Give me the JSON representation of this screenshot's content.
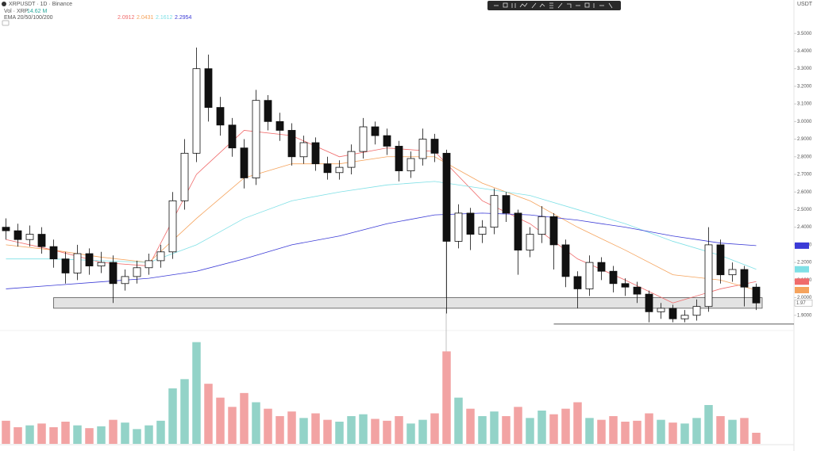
{
  "chart_data": {
    "type": "candlestick",
    "symbol": "XRPUSDT · 1D · Binance",
    "volume_label": "Vol · XRP",
    "volume_value": "14.62 M",
    "ema_label": "EMA 20/50/100/200",
    "currency": "USDT",
    "ylim": [
      1.8,
      3.6
    ],
    "yticks": [
      {
        "value": 1.9,
        "label": "1.9000"
      },
      {
        "value": 2.0,
        "label": "2.0000"
      },
      {
        "value": 2.1,
        "label": "2.1000"
      },
      {
        "value": 2.2,
        "label": "2.2000"
      },
      {
        "value": 2.3,
        "label": "2.3000"
      },
      {
        "value": 2.4,
        "label": "2.4000"
      },
      {
        "value": 2.5,
        "label": "2.5000"
      },
      {
        "value": 2.6,
        "label": "2.6000"
      },
      {
        "value": 2.7,
        "label": "2.7000"
      },
      {
        "value": 2.8,
        "label": "2.8000"
      },
      {
        "value": 2.9,
        "label": "2.9000"
      },
      {
        "value": 3.0,
        "label": "3.0000"
      },
      {
        "value": 3.1,
        "label": "3.1000"
      },
      {
        "value": 3.2,
        "label": "3.2000"
      },
      {
        "value": 3.3,
        "label": "3.3000"
      },
      {
        "value": 3.4,
        "label": "3.4000"
      },
      {
        "value": 3.5,
        "label": "3.5000"
      }
    ],
    "up_color": "#ffffff",
    "down_color": "#111111",
    "open": [
      2.4,
      2.38,
      2.33,
      2.36,
      2.29,
      2.22,
      2.14,
      2.25,
      2.18,
      2.2,
      2.08,
      2.12,
      2.17,
      2.21,
      2.26,
      2.55,
      2.82,
      3.3,
      3.08,
      2.98,
      2.85,
      2.68,
      3.12,
      3.0,
      2.95,
      2.8,
      2.88,
      2.76,
      2.71,
      2.74,
      2.83,
      2.97,
      2.92,
      2.86,
      2.72,
      2.79,
      2.9,
      2.82,
      2.32,
      2.48,
      2.36,
      2.4,
      2.58,
      2.48,
      2.27,
      2.36,
      2.46,
      2.3,
      2.12,
      2.05,
      2.2,
      2.15,
      2.08,
      2.06,
      2.02,
      1.92,
      1.94,
      1.88,
      1.9,
      1.95,
      2.3,
      2.13,
      2.16,
      2.06
    ],
    "high": [
      2.45,
      2.42,
      2.41,
      2.4,
      2.33,
      2.26,
      2.3,
      2.28,
      2.26,
      2.24,
      2.16,
      2.21,
      2.25,
      2.3,
      2.6,
      2.9,
      3.42,
      3.38,
      3.14,
      3.02,
      2.9,
      3.18,
      3.15,
      3.05,
      2.99,
      2.92,
      2.91,
      2.8,
      2.78,
      2.87,
      3.02,
      3.0,
      2.96,
      2.89,
      2.83,
      2.96,
      2.93,
      2.84,
      2.53,
      2.51,
      2.44,
      2.62,
      2.6,
      2.5,
      2.4,
      2.52,
      2.48,
      2.33,
      2.15,
      2.24,
      2.23,
      2.18,
      2.11,
      2.09,
      2.04,
      1.97,
      1.96,
      1.93,
      1.99,
      2.4,
      2.33,
      2.2,
      2.18,
      2.08
    ],
    "low": [
      2.33,
      2.29,
      2.29,
      2.25,
      2.17,
      2.08,
      2.1,
      2.13,
      2.14,
      1.97,
      2.04,
      2.08,
      2.13,
      2.17,
      2.22,
      2.5,
      2.77,
      3.0,
      2.92,
      2.8,
      2.62,
      2.64,
      2.95,
      2.89,
      2.75,
      2.76,
      2.72,
      2.67,
      2.67,
      2.7,
      2.79,
      2.87,
      2.81,
      2.66,
      2.68,
      2.75,
      2.77,
      1.91,
      2.28,
      2.27,
      2.31,
      2.36,
      2.43,
      2.13,
      2.23,
      2.31,
      2.16,
      2.06,
      1.94,
      2.01,
      2.1,
      2.03,
      2.01,
      1.97,
      1.86,
      1.88,
      1.86,
      1.86,
      1.87,
      1.92,
      2.08,
      2.09,
      1.95,
      1.93
    ],
    "close": [
      2.38,
      2.33,
      2.36,
      2.29,
      2.22,
      2.14,
      2.25,
      2.18,
      2.2,
      2.08,
      2.12,
      2.17,
      2.21,
      2.26,
      2.55,
      2.82,
      3.3,
      3.08,
      2.98,
      2.85,
      2.68,
      3.12,
      3.0,
      2.95,
      2.8,
      2.88,
      2.76,
      2.71,
      2.74,
      2.83,
      2.97,
      2.92,
      2.86,
      2.72,
      2.79,
      2.9,
      2.82,
      2.32,
      2.48,
      2.36,
      2.4,
      2.58,
      2.48,
      2.27,
      2.36,
      2.46,
      2.3,
      2.12,
      2.05,
      2.2,
      2.15,
      2.08,
      2.06,
      2.02,
      1.92,
      1.94,
      1.88,
      1.9,
      1.95,
      2.3,
      2.13,
      2.16,
      2.06,
      1.97
    ],
    "volume": [
      250,
      180,
      200,
      220,
      180,
      240,
      200,
      170,
      190,
      260,
      230,
      160,
      200,
      250,
      600,
      700,
      1100,
      650,
      500,
      400,
      550,
      450,
      380,
      300,
      350,
      280,
      330,
      260,
      240,
      300,
      320,
      270,
      250,
      300,
      220,
      260,
      330,
      1000,
      500,
      380,
      300,
      350,
      300,
      400,
      280,
      360,
      320,
      380,
      450,
      280,
      260,
      300,
      240,
      250,
      330,
      260,
      230,
      220,
      280,
      420,
      300,
      260,
      280,
      120
    ],
    "vlim": [
      0,
      1200
    ],
    "volume_up_color": "#93d3c8",
    "volume_down_color": "#f2a3a3",
    "ema_x": [
      0,
      4,
      8,
      12,
      16,
      20,
      24,
      28,
      32,
      36,
      40,
      44,
      48,
      52,
      56,
      60,
      63
    ],
    "series": [
      {
        "color": "#f06b6b",
        "values": [
          2.33,
          2.27,
          2.2,
          2.18,
          2.7,
          2.95,
          2.92,
          2.8,
          2.85,
          2.83,
          2.55,
          2.42,
          2.22,
          2.1,
          1.97,
          2.05,
          2.0912
        ]
      },
      {
        "color": "#f5a35c",
        "values": [
          2.3,
          2.27,
          2.23,
          2.2,
          2.45,
          2.68,
          2.76,
          2.76,
          2.8,
          2.8,
          2.65,
          2.55,
          2.4,
          2.27,
          2.13,
          2.1,
          2.0431
        ]
      },
      {
        "color": "#7fe0e6",
        "values": [
          2.22,
          2.22,
          2.21,
          2.2,
          2.3,
          2.45,
          2.55,
          2.6,
          2.64,
          2.66,
          2.62,
          2.58,
          2.5,
          2.42,
          2.32,
          2.24,
          2.1612
        ]
      },
      {
        "color": "#3b3bd6",
        "values": [
          2.05,
          2.07,
          2.09,
          2.11,
          2.15,
          2.22,
          2.3,
          2.35,
          2.42,
          2.47,
          2.48,
          2.47,
          2.44,
          2.4,
          2.35,
          2.31,
          2.2954
        ]
      }
    ],
    "zone": [
      1.94,
      2.0
    ],
    "zone_start": 4,
    "level": 1.85,
    "level_start": 46
  }
}
